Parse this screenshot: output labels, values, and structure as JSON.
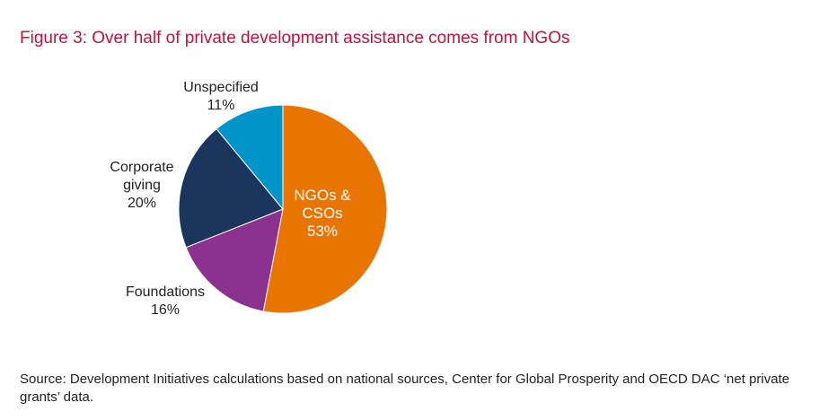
{
  "header": {
    "title": "Figure 3: Over half of private development assistance comes from NGOs"
  },
  "chart_data": {
    "type": "pie",
    "title": "Figure 3: Over half of private development assistance comes from NGOs",
    "slices": [
      {
        "name_lines": [
          "NGOs &",
          "CSOs"
        ],
        "value": 53,
        "label": "53%",
        "color": "#e97400"
      },
      {
        "name_lines": [
          "Foundations"
        ],
        "value": 16,
        "label": "16%",
        "color": "#8b3190"
      },
      {
        "name_lines": [
          "Corporate",
          "giving"
        ],
        "value": 20,
        "label": "20%",
        "color": "#1b365d"
      },
      {
        "name_lines": [
          "Unspecified"
        ],
        "value": 11,
        "label": "11%",
        "color": "#0095c8"
      }
    ],
    "start_angle_deg": 0,
    "direction": "clockwise"
  },
  "footer": {
    "source": "Source: Development Initiatives calculations based on national sources, Center for Global Prosperity and OECD DAC ‘net private grants’ data."
  }
}
